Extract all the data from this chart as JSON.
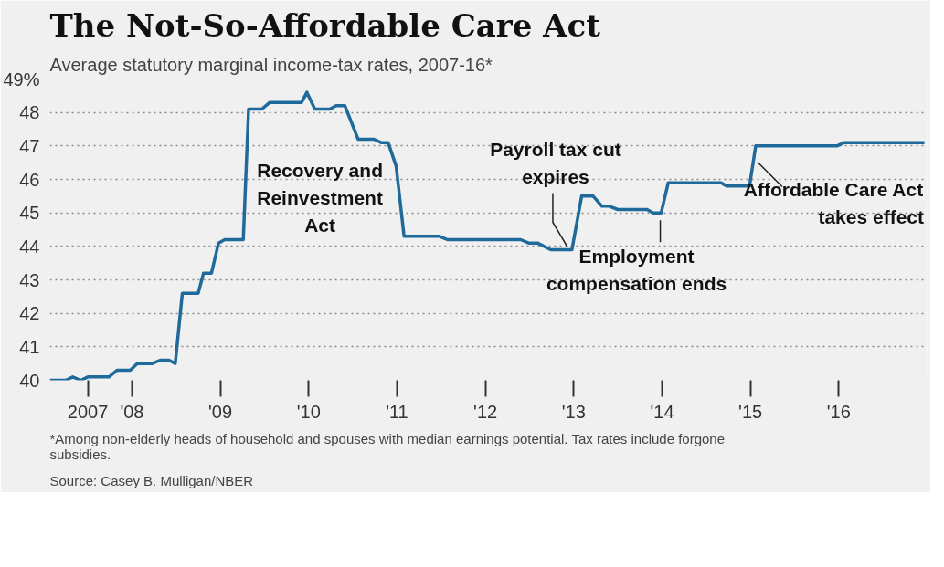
{
  "chart_data": {
    "type": "line",
    "title": "The Not-So-Affordable Care Act",
    "subtitle": "Average statutory marginal income-tax rates, 2007-16*",
    "x": [
      2007.07,
      2007.25,
      2007.33,
      2007.42,
      2007.5,
      2007.74,
      2007.83,
      2007.98,
      2008.06,
      2008.23,
      2008.32,
      2008.42,
      2008.49,
      2008.57,
      2008.75,
      2008.81,
      2008.9,
      2008.98,
      2009.05,
      2009.26,
      2009.32,
      2009.47,
      2009.56,
      2009.92,
      2009.98,
      2010.07,
      2010.24,
      2010.31,
      2010.41,
      2010.56,
      2010.74,
      2010.82,
      2010.9,
      2010.99,
      2011.08,
      2011.48,
      2011.57,
      2012.4,
      2012.49,
      2012.59,
      2012.74,
      2012.98,
      2013.09,
      2013.22,
      2013.32,
      2013.4,
      2013.5,
      2013.83,
      2013.9,
      2013.99,
      2014.07,
      2014.67,
      2014.73,
      2014.99,
      2015.06,
      2015.98,
      2016.06,
      2016.97
    ],
    "series": [
      {
        "color": "#1f6a9a",
        "values": [
          40.0,
          40.0,
          40.1,
          40.0,
          40.1,
          40.1,
          40.3,
          40.3,
          40.5,
          40.5,
          40.6,
          40.6,
          40.5,
          42.6,
          42.6,
          43.2,
          43.2,
          44.1,
          44.2,
          44.2,
          48.1,
          48.1,
          48.3,
          48.3,
          48.6,
          48.1,
          48.1,
          48.2,
          48.2,
          47.2,
          47.2,
          47.1,
          47.1,
          46.4,
          44.3,
          44.3,
          44.2,
          44.2,
          44.1,
          44.1,
          43.9,
          43.9,
          45.5,
          45.5,
          45.2,
          45.2,
          45.1,
          45.1,
          45.0,
          45.0,
          45.9,
          45.9,
          45.8,
          45.8,
          47.0,
          47.0,
          47.1,
          47.1
        ]
      }
    ],
    "xlim": [
      2007.07,
      2017.0
    ],
    "xticks": [
      {
        "value": 2007.5,
        "label": "2007"
      },
      {
        "value": 2008,
        "label": "'08"
      },
      {
        "value": 2009,
        "label": "'09"
      },
      {
        "value": 2010,
        "label": "'10"
      },
      {
        "value": 2011,
        "label": "'11"
      },
      {
        "value": 2012,
        "label": "'12"
      },
      {
        "value": 2013,
        "label": "'13"
      },
      {
        "value": 2014,
        "label": "'14"
      },
      {
        "value": 2015,
        "label": "'15"
      },
      {
        "value": 2016,
        "label": "'16"
      }
    ],
    "ylim": [
      40,
      49
    ],
    "yticks": [
      40,
      41,
      42,
      43,
      44,
      45,
      46,
      47,
      48,
      {
        "value": 49,
        "label": "49%"
      }
    ],
    "grid": "y",
    "marker": "none",
    "annotations": [
      {
        "text": "Recovery and\nReinvestment\nAct",
        "x": 2009.3,
        "y": 46.0
      },
      {
        "text": "Payroll tax cut\nexpires",
        "x": 2012.95,
        "y": 43.9
      },
      {
        "text": "Employment\ncompensation ends",
        "x": 2013.98,
        "y": 45.0
      },
      {
        "text": "Affordable Care Act\ntakes effect",
        "x": 2015.05,
        "y": 46.6
      },
      "*Among non-elderly heads of household and spouses with median earnings potential. Tax rates include forgone\nsubsidies.",
      "Source: Casey B. Mulligan/NBER"
    ]
  }
}
